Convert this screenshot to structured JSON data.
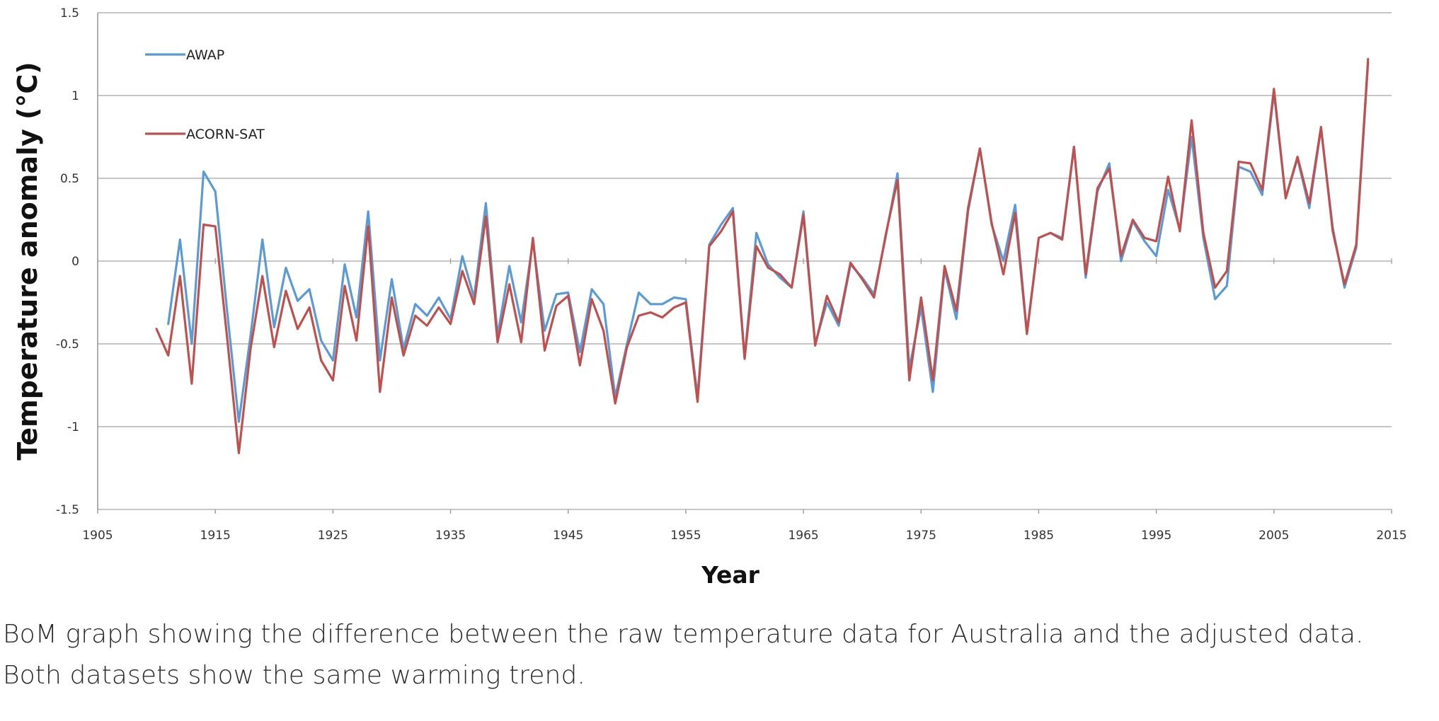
{
  "chart_data": {
    "type": "line",
    "title": "",
    "xlabel": "Year",
    "ylabel": "Temperature anomaly (°C)",
    "xlim": [
      1905,
      2015
    ],
    "ylim": [
      -1.5,
      1.5
    ],
    "xticks": [
      "1905",
      "1915",
      "1925",
      "1935",
      "1945",
      "1955",
      "1965",
      "1975",
      "1985",
      "1995",
      "2005",
      "2015"
    ],
    "yticks": [
      "1.5",
      "1",
      "0.5",
      "0",
      "-0.5",
      "-1",
      "-1.5"
    ],
    "grid": true,
    "legend_position": "top-left",
    "series": [
      {
        "name": "AWAP",
        "color": "#5b9bd5",
        "x": [
          1911,
          1912,
          1913,
          1914,
          1915,
          1916,
          1917,
          1918,
          1919,
          1920,
          1921,
          1922,
          1923,
          1924,
          1925,
          1926,
          1927,
          1928,
          1929,
          1930,
          1931,
          1932,
          1933,
          1934,
          1935,
          1936,
          1937,
          1938,
          1939,
          1940,
          1941,
          1942,
          1943,
          1944,
          1945,
          1946,
          1947,
          1948,
          1949,
          1950,
          1951,
          1952,
          1953,
          1954,
          1955,
          1956,
          1957,
          1958,
          1959,
          1960,
          1961,
          1962,
          1963,
          1964,
          1965,
          1966,
          1967,
          1968,
          1969,
          1970,
          1971,
          1972,
          1973,
          1974,
          1975,
          1976,
          1977,
          1978,
          1979,
          1980,
          1981,
          1982,
          1983,
          1984,
          1985,
          1986,
          1987,
          1988,
          1989,
          1990,
          1991,
          1992,
          1993,
          1994,
          1995,
          1996,
          1997,
          1998,
          1999,
          2000,
          2001,
          2002,
          2003,
          2004,
          2005,
          2006,
          2007,
          2008,
          2009,
          2010,
          2011,
          2012,
          2013
        ],
        "values": [
          -0.38,
          0.13,
          -0.5,
          0.54,
          0.42,
          -0.3,
          -0.97,
          -0.45,
          0.13,
          -0.4,
          -0.04,
          -0.24,
          -0.17,
          -0.48,
          -0.6,
          -0.02,
          -0.34,
          0.3,
          -0.6,
          -0.11,
          -0.53,
          -0.26,
          -0.33,
          -0.22,
          -0.35,
          0.03,
          -0.22,
          0.35,
          -0.45,
          -0.03,
          -0.37,
          0.12,
          -0.42,
          -0.2,
          -0.19,
          -0.55,
          -0.17,
          -0.26,
          -0.82,
          -0.5,
          -0.19,
          -0.26,
          -0.26,
          -0.22,
          -0.23,
          -0.82,
          0.1,
          0.22,
          0.32,
          -0.58,
          0.17,
          -0.02,
          -0.1,
          -0.16,
          0.3,
          -0.5,
          -0.25,
          -0.39,
          -0.02,
          -0.1,
          -0.2,
          0.15,
          0.53,
          -0.65,
          -0.28,
          -0.79,
          -0.05,
          -0.35,
          0.3,
          0.68,
          0.22,
          0.0,
          0.34,
          -0.43,
          0.14,
          0.17,
          0.14,
          0.69,
          -0.1,
          0.42,
          0.59,
          0.0,
          0.24,
          0.12,
          0.03,
          0.43,
          0.19,
          0.75,
          0.14,
          -0.23,
          -0.15,
          0.57,
          0.54,
          0.4,
          1.02,
          0.38,
          0.62,
          0.32,
          0.8,
          0.2,
          -0.16,
          0.08,
          1.2
        ]
      },
      {
        "name": "ACORN-SAT",
        "color": "#c0504d",
        "x": [
          1910,
          1911,
          1912,
          1913,
          1914,
          1915,
          1916,
          1917,
          1918,
          1919,
          1920,
          1921,
          1922,
          1923,
          1924,
          1925,
          1926,
          1927,
          1928,
          1929,
          1930,
          1931,
          1932,
          1933,
          1934,
          1935,
          1936,
          1937,
          1938,
          1939,
          1940,
          1941,
          1942,
          1943,
          1944,
          1945,
          1946,
          1947,
          1948,
          1949,
          1950,
          1951,
          1952,
          1953,
          1954,
          1955,
          1956,
          1957,
          1958,
          1959,
          1960,
          1961,
          1962,
          1963,
          1964,
          1965,
          1966,
          1967,
          1968,
          1969,
          1970,
          1971,
          1972,
          1973,
          1974,
          1975,
          1976,
          1977,
          1978,
          1979,
          1980,
          1981,
          1982,
          1983,
          1984,
          1985,
          1986,
          1987,
          1988,
          1989,
          1990,
          1991,
          1992,
          1993,
          1994,
          1995,
          1996,
          1997,
          1998,
          1999,
          2000,
          2001,
          2002,
          2003,
          2004,
          2005,
          2006,
          2007,
          2008,
          2009,
          2010,
          2011,
          2012,
          2013
        ],
        "values": [
          -0.41,
          -0.57,
          -0.09,
          -0.74,
          0.22,
          0.21,
          -0.46,
          -1.16,
          -0.53,
          -0.09,
          -0.52,
          -0.18,
          -0.41,
          -0.28,
          -0.6,
          -0.72,
          -0.15,
          -0.48,
          0.21,
          -0.79,
          -0.22,
          -0.57,
          -0.33,
          -0.39,
          -0.28,
          -0.38,
          -0.06,
          -0.26,
          0.27,
          -0.49,
          -0.14,
          -0.49,
          0.14,
          -0.54,
          -0.27,
          -0.21,
          -0.63,
          -0.23,
          -0.42,
          -0.86,
          -0.52,
          -0.33,
          -0.31,
          -0.34,
          -0.28,
          -0.25,
          -0.85,
          0.09,
          0.18,
          0.3,
          -0.59,
          0.09,
          -0.04,
          -0.08,
          -0.16,
          0.28,
          -0.51,
          -0.21,
          -0.37,
          -0.01,
          -0.11,
          -0.22,
          0.16,
          0.49,
          -0.72,
          -0.22,
          -0.72,
          -0.03,
          -0.3,
          0.32,
          0.68,
          0.23,
          -0.08,
          0.29,
          -0.44,
          0.14,
          0.17,
          0.13,
          0.69,
          -0.08,
          0.44,
          0.56,
          0.03,
          0.25,
          0.14,
          0.12,
          0.51,
          0.18,
          0.85,
          0.17,
          -0.16,
          -0.06,
          0.6,
          0.59,
          0.43,
          1.04,
          0.38,
          0.63,
          0.35,
          0.81,
          0.18,
          -0.14,
          0.1,
          1.22
        ]
      }
    ]
  },
  "caption": "BoM graph showing the difference between the raw temperature data for Australia and the adjusted data. Both datasets show the same warming trend."
}
